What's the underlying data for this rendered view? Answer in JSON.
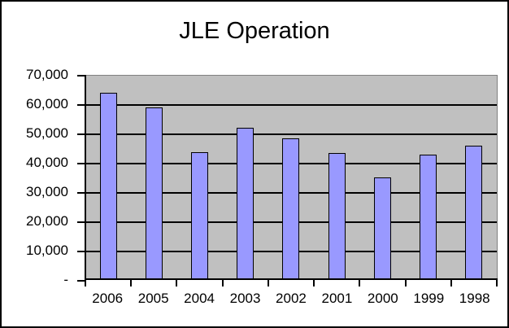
{
  "chart_data": {
    "type": "bar",
    "title": "JLE Operation",
    "categories": [
      "2006",
      "2005",
      "2004",
      "2003",
      "2002",
      "2001",
      "2000",
      "1999",
      "1998"
    ],
    "values": [
      64000,
      59000,
      43600,
      52100,
      48300,
      43300,
      35000,
      42800,
      45800
    ],
    "xlabel": "",
    "ylabel": "",
    "ylim": [
      0,
      70000
    ],
    "ytick_interval": 10000,
    "ytick_labels": [
      "70,000",
      "60,000",
      "50,000",
      "40,000",
      "30,000",
      "20,000",
      "10,000",
      "-"
    ],
    "grid": "horizontal-on",
    "legend": "none",
    "colors": {
      "bar_fill": "#9999FF",
      "bar_border": "#000000",
      "plot_background": "#C0C0C0",
      "plot_border": "#808080",
      "gridline": "#000000",
      "axis": "#000000",
      "chart_background": "#FFFFFF",
      "chart_border": "#000000",
      "text": "#000000"
    }
  }
}
